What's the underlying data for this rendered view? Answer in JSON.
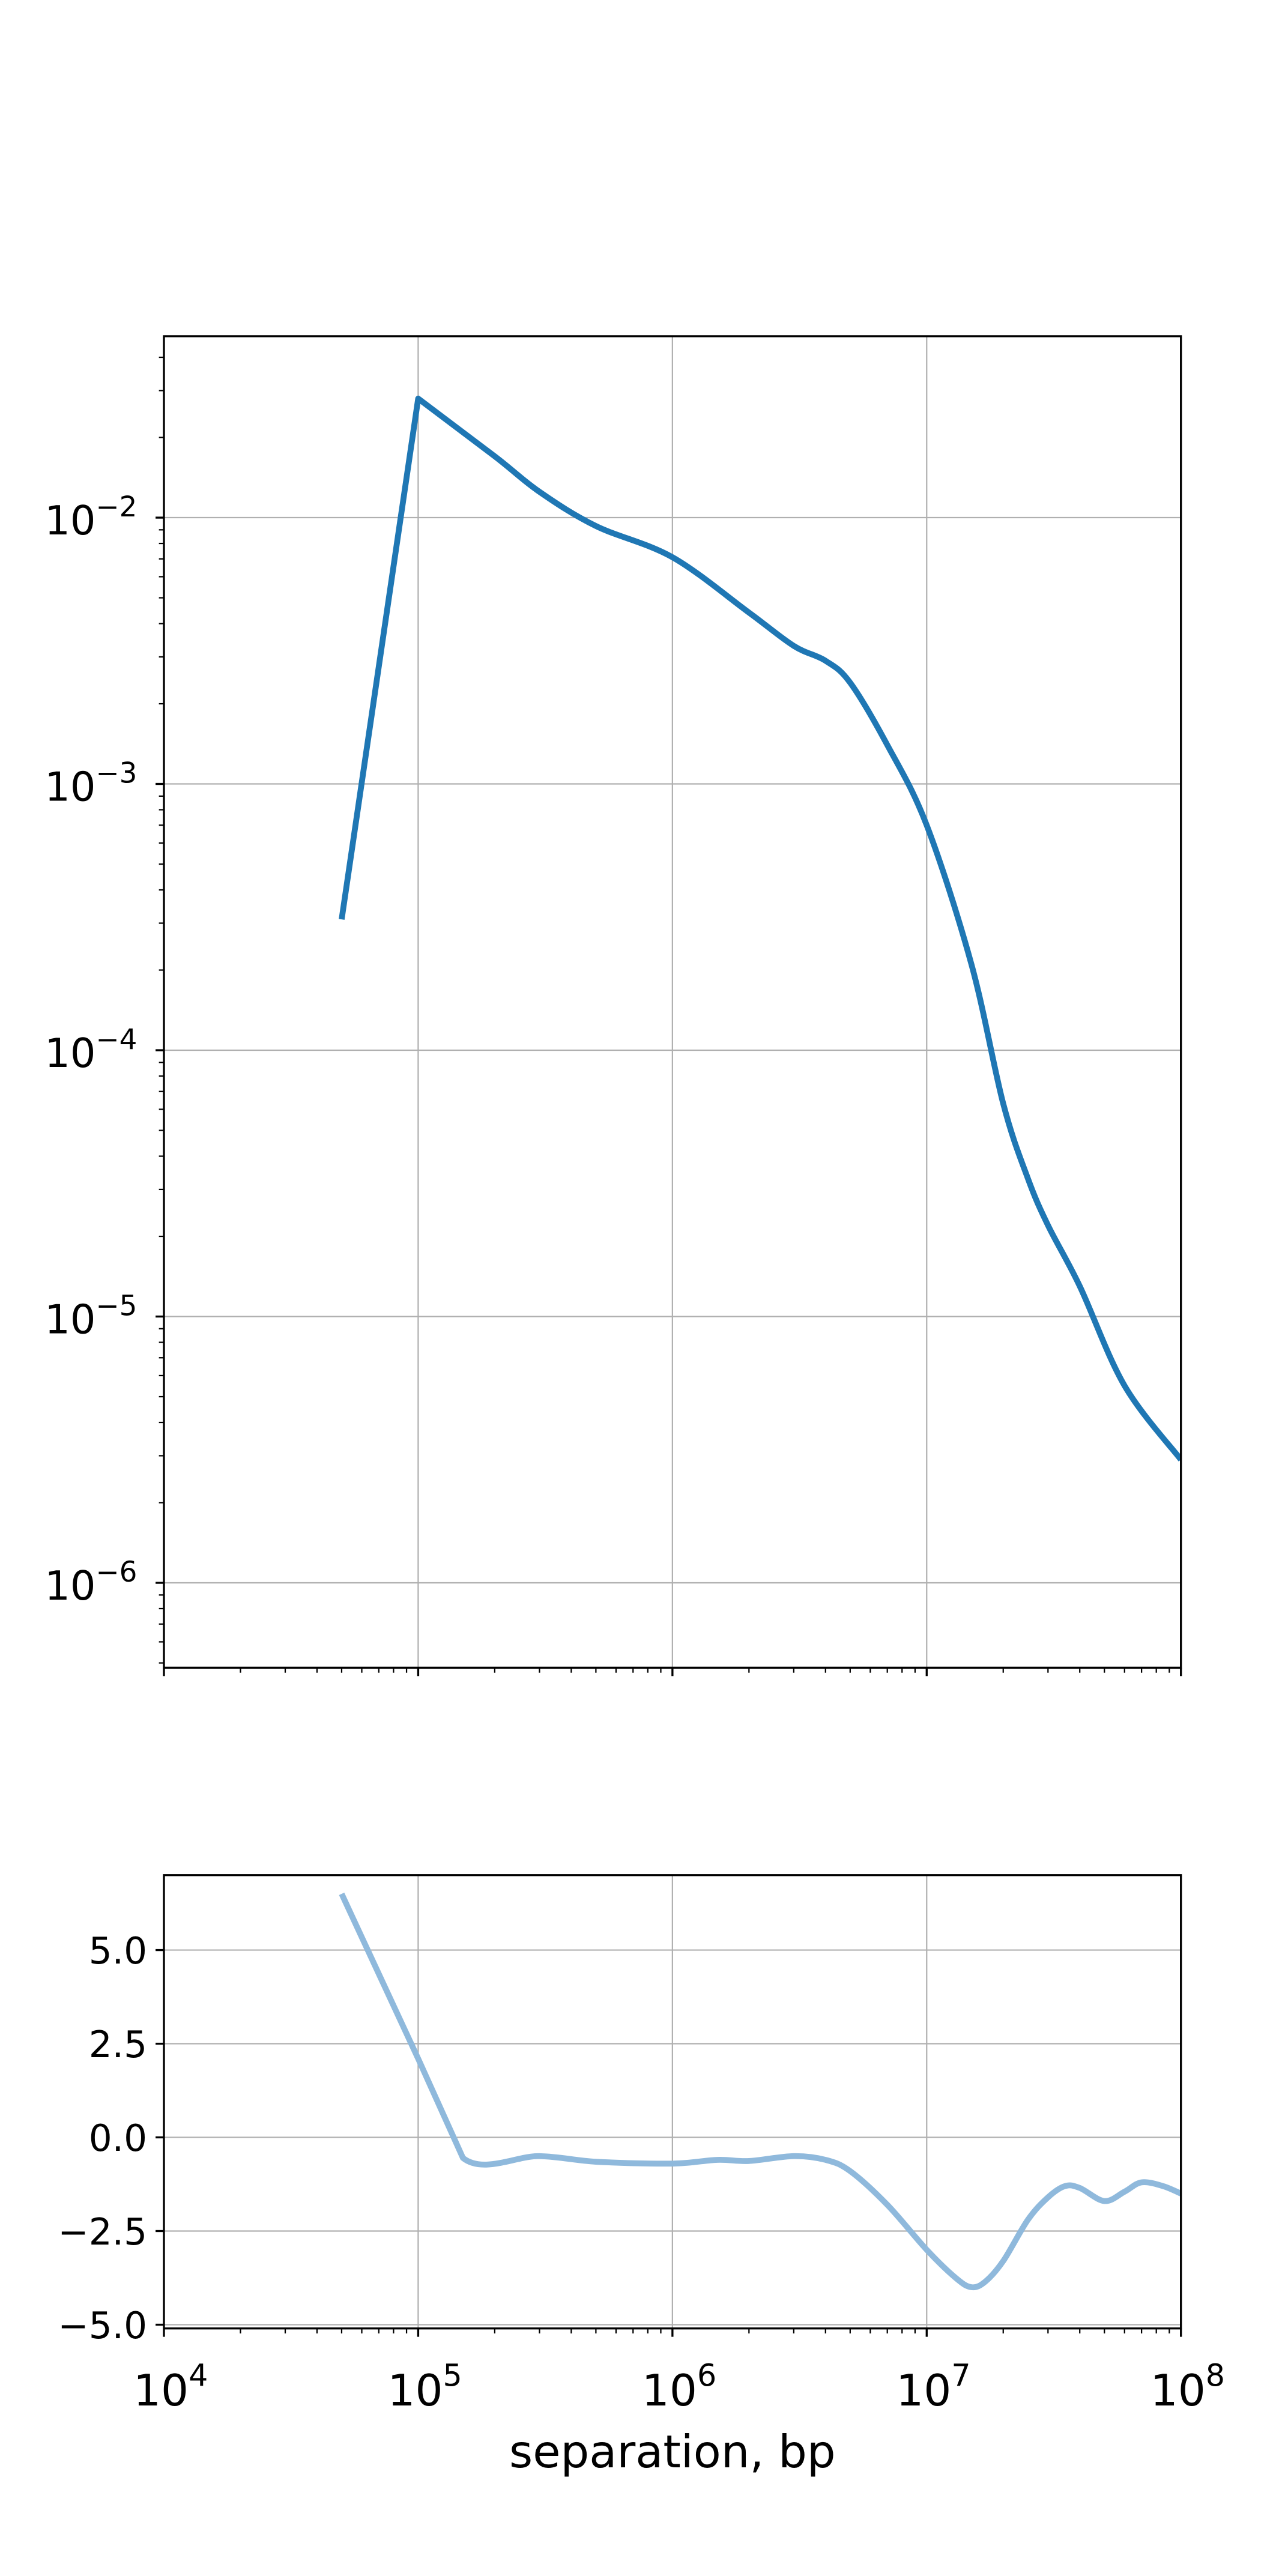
{
  "chart_data": [
    {
      "type": "line",
      "xscale": "log",
      "yscale": "log",
      "xlim": [
        10000,
        100000000
      ],
      "ylim": [
        4.8e-07,
        0.048
      ],
      "grid": true,
      "xlabel": "",
      "ylabel": "",
      "yticks": [
        1e-06,
        1e-05,
        0.0001,
        0.001,
        0.01
      ],
      "ytick_labels": [
        {
          "base": "10",
          "exp": "−6"
        },
        {
          "base": "10",
          "exp": "−5"
        },
        {
          "base": "10",
          "exp": "−4"
        },
        {
          "base": "10",
          "exp": "−3"
        },
        {
          "base": "10",
          "exp": "−2"
        }
      ],
      "color": "#1f77b4",
      "x": [
        50000,
        100000,
        200000,
        300000,
        500000,
        1000000,
        2000000,
        3000000,
        4000000,
        5000000,
        7000000,
        10000000,
        15000000,
        20000000,
        25000000,
        30000000,
        40000000,
        60000000,
        100000000
      ],
      "y": [
        0.00031,
        0.028,
        0.017,
        0.0125,
        0.0093,
        0.0071,
        0.0044,
        0.0033,
        0.0029,
        0.0024,
        0.0014,
        0.0007,
        0.00021,
        6.3e-05,
        3.3e-05,
        2.2e-05,
        1.3e-05,
        5.5e-06,
        2.9e-06
      ]
    },
    {
      "type": "line",
      "xscale": "log",
      "yscale": "linear",
      "xlim": [
        10000,
        100000000
      ],
      "ylim": [
        -5.1,
        7.0
      ],
      "grid": true,
      "xlabel": "separation, bp",
      "ylabel": "",
      "xticks": [
        10000,
        100000,
        1000000,
        10000000,
        100000000
      ],
      "xtick_labels": [
        {
          "base": "10",
          "exp": "4"
        },
        {
          "base": "10",
          "exp": "5"
        },
        {
          "base": "10",
          "exp": "6"
        },
        {
          "base": "10",
          "exp": "7"
        },
        {
          "base": "10",
          "exp": "8"
        }
      ],
      "yticks": [
        -5,
        -2.5,
        0,
        2.5,
        5
      ],
      "ytick_labels": [
        "−5.0",
        "−2.5",
        "0.0",
        "2.5",
        "5.0"
      ],
      "color": "#8fb9dc",
      "x": [
        50000,
        100000,
        150000,
        300000,
        500000,
        1000000,
        1500000,
        2000000,
        3000000,
        4000000,
        5000000,
        7000000,
        10000000,
        13000000,
        15000000,
        17000000,
        20000000,
        25000000,
        30000000,
        35000000,
        40000000,
        50000000,
        60000000,
        70000000,
        85000000,
        100000000
      ],
      "y": [
        6.5,
        2.1,
        -0.55,
        -0.5,
        -0.65,
        -0.7,
        -0.6,
        -0.63,
        -0.5,
        -0.6,
        -0.9,
        -1.8,
        -3.0,
        -3.75,
        -4.0,
        -3.85,
        -3.3,
        -2.2,
        -1.6,
        -1.3,
        -1.35,
        -1.7,
        -1.45,
        -1.2,
        -1.3,
        -1.5
      ]
    }
  ]
}
